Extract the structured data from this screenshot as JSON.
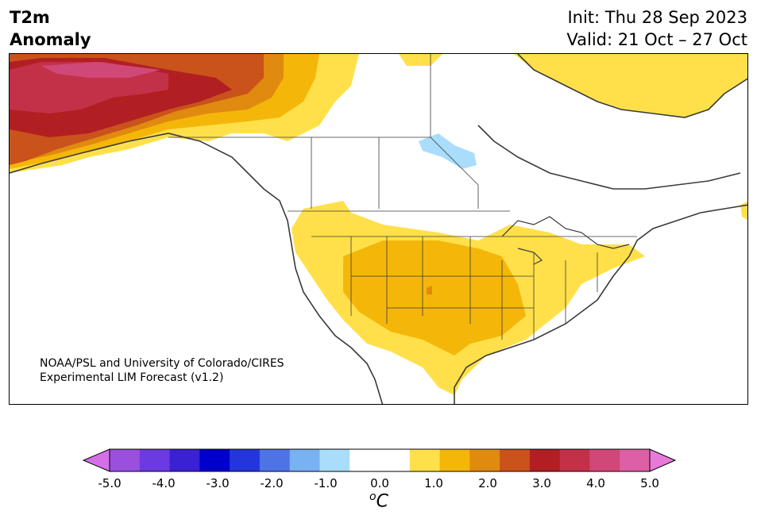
{
  "header": {
    "title_line1": "T2m",
    "title_line2": "Anomaly",
    "init": "Init: Thu 28 Sep 2023",
    "valid": "Valid: 21 Oct – 27 Oct"
  },
  "credit": {
    "line1": "NOAA/PSL and University of Colorado/CIRES",
    "line2": "Experimental LIM Forecast (v1.2)"
  },
  "colorbar": {
    "ticks": [
      "-5.0",
      "-4.0",
      "-3.0",
      "-2.0",
      "-1.0",
      "0.0",
      "1.0",
      "2.0",
      "3.0",
      "4.0",
      "5.0"
    ],
    "unit_sup": "o",
    "unit_base": "C",
    "colors": [
      "#d46fe8",
      "#9a50dd",
      "#6b3ae0",
      "#3a21d2",
      "#0000cd",
      "#2336dc",
      "#4d73e5",
      "#79b2f2",
      "#a9ddfb",
      "#ffffff",
      "#ffffff",
      "#ffe04a",
      "#f4b709",
      "#e08a10",
      "#c9531a",
      "#b11f23",
      "#c33148",
      "#d04878",
      "#dd60a6",
      "#e879d9"
    ]
  },
  "map_regions": [
    "alaska-anomaly",
    "nw-canada-anomaly",
    "north-canada-anomaly",
    "dakota-cool-anomaly",
    "us-warm-anomaly",
    "east-canada-anomaly"
  ]
}
